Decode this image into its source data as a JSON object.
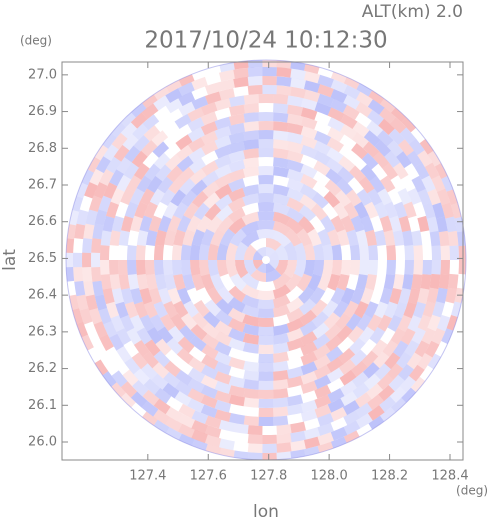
{
  "chart_data": {
    "type": "radar-ppi",
    "title": "2017/10/24 10:12:30",
    "subtitle": "ALT(km) 2.0",
    "x_label": "lon",
    "y_label": "lat",
    "x_unit": "(deg)",
    "y_unit": "(deg)",
    "xlim": [
      127.116,
      128.443
    ],
    "ylim": [
      25.951,
      27.035
    ],
    "xticks": [
      127.4,
      127.6,
      127.8,
      {
        "value": 128.0,
        "label": "128.0"
      },
      128.2,
      128.4
    ],
    "yticks": [
      {
        "value": 26.0,
        "label": "26.0"
      },
      26.1,
      26.2,
      26.3,
      26.4,
      26.5,
      26.6,
      26.7,
      26.8,
      26.9,
      {
        "value": 27.0,
        "label": "27.0"
      }
    ]
  }
}
